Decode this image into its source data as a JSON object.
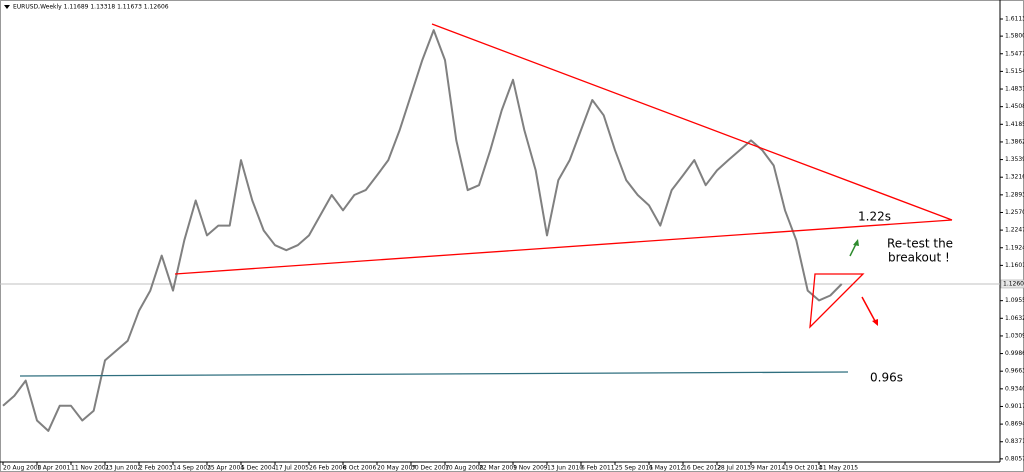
{
  "chart_data": {
    "type": "line",
    "title": "EURUSD,Weekly  1.11689 1.13318 1.11673 1.12606",
    "categories": [
      "20 Aug 2000",
      null,
      null,
      "1 Apr 2001",
      null,
      null,
      "11 Nov 2001",
      null,
      null,
      "23 Jun 2002",
      null,
      null,
      "2 Feb 2003",
      null,
      null,
      "14 Sep 2003",
      null,
      null,
      "25 Apr 2004",
      null,
      null,
      "5 Dec 2004",
      null,
      null,
      "17 Jul 2005",
      null,
      null,
      "26 Feb 2006",
      null,
      null,
      "8 Oct 2006",
      null,
      null,
      "20 May 2007",
      null,
      null,
      "30 Dec 2007",
      null,
      null,
      "10 Aug 2008",
      null,
      null,
      "22 Mar 2009",
      null,
      null,
      "1 Nov 2009",
      null,
      null,
      "13 Jun 2010",
      null,
      null,
      "6 Feb 2011",
      null,
      null,
      "25 Sep 2011",
      null,
      null,
      "6 May 2012",
      null,
      null,
      "16 Dec 2012",
      null,
      null,
      "28 Jul 2013",
      null,
      null,
      "9 Mar 2014",
      null,
      null,
      "19 Oct 2014",
      null,
      null,
      "31 May 2015",
      null,
      null
    ],
    "series": [
      {
        "name": "EURUSD",
        "color": "#808080",
        "values": [
          0.903,
          0.921,
          0.949,
          0.876,
          0.857,
          0.903,
          0.903,
          0.876,
          0.894,
          0.986,
          1.004,
          1.022,
          1.077,
          1.114,
          1.178,
          1.114,
          1.206,
          1.279,
          1.215,
          1.233,
          1.233,
          1.353,
          1.279,
          1.224,
          1.197,
          1.188,
          1.197,
          1.215,
          1.252,
          1.289,
          1.261,
          1.289,
          1.298,
          1.325,
          1.353,
          1.408,
          1.472,
          1.536,
          1.591,
          1.536,
          1.389,
          1.298,
          1.307,
          1.371,
          1.444,
          1.5,
          1.408,
          1.334,
          1.215,
          1.316,
          1.353,
          1.408,
          1.463,
          1.435,
          1.371,
          1.316,
          1.289,
          1.27,
          1.233,
          1.298,
          1.325,
          1.353,
          1.307,
          1.334,
          1.353,
          1.371,
          1.389,
          1.371,
          1.343,
          1.261,
          1.206,
          1.114,
          1.096,
          1.105,
          1.126
        ]
      }
    ],
    "ylim": [
      0.8,
      1.637
    ],
    "yticks": [
      1.61135,
      {
        "value": 1.58,
        "label": "1.58000"
      },
      {
        "value": 1.5477,
        "label": "1.54770"
      },
      {
        "value": 1.5154,
        "label": "1.51540"
      },
      {
        "value": 1.4831,
        "label": "1.48310"
      },
      {
        "value": 1.4508,
        "label": "1.45080"
      },
      {
        "value": 1.4185,
        "label": "1.41850"
      },
      {
        "value": 1.3862,
        "label": "1.38620"
      },
      {
        "value": 1.3539,
        "label": "1.35390"
      },
      {
        "value": 1.3216,
        "label": "1.32160"
      },
      {
        "value": 1.2893,
        "label": "1.28930"
      },
      {
        "value": 1.257,
        "label": "1.25700"
      },
      {
        "value": 1.2247,
        "label": "1.22470"
      },
      {
        "value": 1.1924,
        "label": "1.19240"
      },
      {
        "value": 1.1601,
        "label": "1.16010"
      },
      {
        "value": 1.0955,
        "label": "1.09550"
      },
      {
        "value": 1.0632,
        "label": "1.06320"
      },
      {
        "value": 1.0309,
        "label": "1.03090"
      },
      {
        "value": 0.9986,
        "label": "0.99860"
      },
      {
        "value": 0.9663,
        "label": "0.96630"
      },
      {
        "value": 0.934,
        "label": "0.93400"
      },
      {
        "value": 0.9017,
        "label": "0.90170"
      },
      {
        "value": 0.8694,
        "label": "0.86940"
      },
      {
        "value": 0.8371,
        "label": "0.83710"
      },
      0.80575
    ],
    "current_price": 1.12606,
    "annotations": [
      "1.22s",
      "Re-test the",
      "breakout !",
      "0.96s"
    ]
  }
}
